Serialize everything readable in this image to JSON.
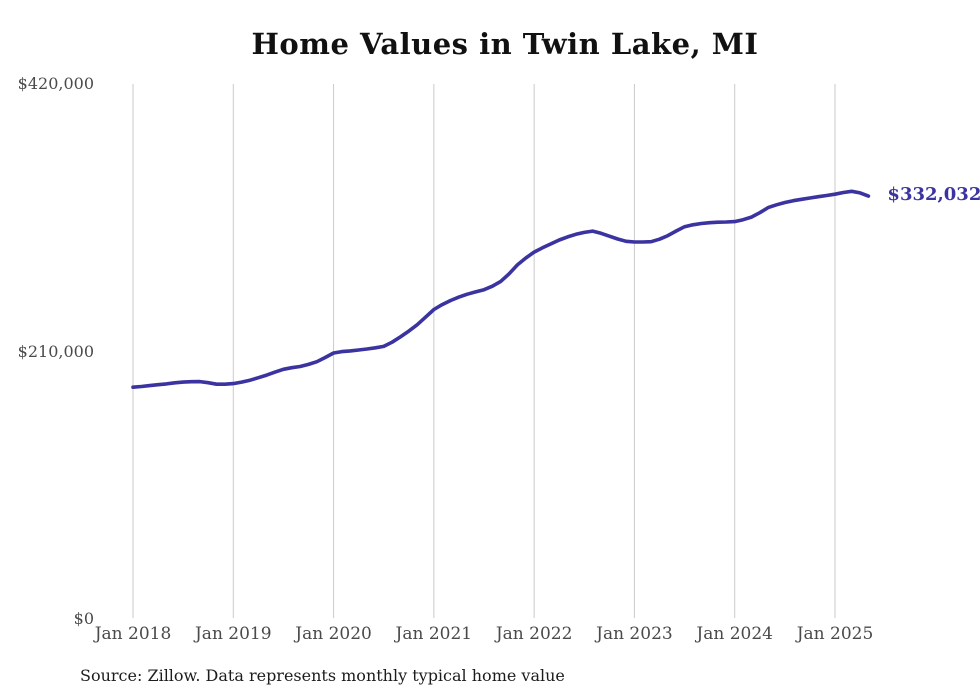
{
  "header": {
    "title": "Home Values in Twin Lake, MI"
  },
  "footer": {
    "source_note": "Source: Zillow. Data represents monthly typical home value"
  },
  "chart": {
    "line_color": "#3a33a0",
    "grid_color": "#cacaca",
    "tick_text_color": "#4a4a4a",
    "end_label": "$332,032"
  },
  "chart_data": {
    "type": "line",
    "title": "Home Values in Twin Lake, MI",
    "xlabel": "",
    "ylabel": "",
    "x_unit": "month",
    "start_month": "2018-01",
    "end_month": "2025-05",
    "x_tick_labels": [
      "Jan 2018",
      "Jan 2019",
      "Jan 2020",
      "Jan 2021",
      "Jan 2022",
      "Jan 2023",
      "Jan 2024",
      "Jan 2025"
    ],
    "x_tick_month_indices": [
      0,
      12,
      24,
      36,
      48,
      60,
      72,
      84
    ],
    "ylim": [
      0,
      420000
    ],
    "y_ticks": [
      0,
      210000,
      420000
    ],
    "y_tick_labels": [
      "$0",
      "$210,000",
      "$420,000"
    ],
    "grid": "vertical-only",
    "legend": "none",
    "latest_value": 332032,
    "latest_value_label": "$332,032",
    "source": "Source: Zillow. Data represents monthly typical home value",
    "series": [
      {
        "name": "Typical home value",
        "values": [
          182000,
          182500,
          183200,
          183900,
          184600,
          185400,
          186000,
          186300,
          186400,
          185500,
          184300,
          184300,
          184800,
          186000,
          187500,
          189400,
          191500,
          193800,
          196000,
          197300,
          198200,
          199900,
          202000,
          205300,
          208800,
          209900,
          210500,
          211200,
          212000,
          212900,
          214000,
          217300,
          221500,
          226000,
          231000,
          236900,
          243000,
          246800,
          250000,
          252700,
          255000,
          256800,
          258500,
          261300,
          265000,
          271000,
          278000,
          283400,
          288000,
          291400,
          294500,
          297500,
          300000,
          302000,
          303500,
          304500,
          302800,
          300500,
          298300,
          296500,
          296000,
          296000,
          296200,
          298200,
          301000,
          304600,
          308000,
          309500,
          310500,
          311100,
          311500,
          311700,
          312000,
          313500,
          315500,
          319000,
          323000,
          325200,
          327000,
          328400,
          329500,
          330500,
          331500,
          332500,
          333500,
          334800,
          335800,
          334500,
          332032
        ]
      }
    ]
  }
}
